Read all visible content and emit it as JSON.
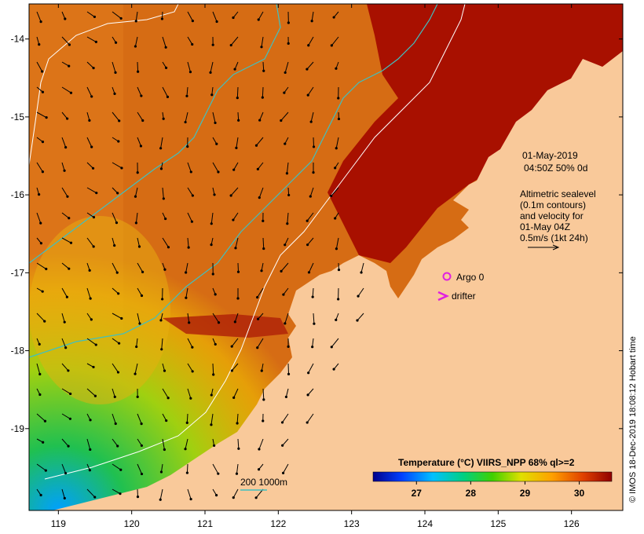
{
  "map": {
    "x_ticks": [
      "119",
      "120",
      "121",
      "122",
      "123",
      "124",
      "125",
      "126"
    ],
    "y_ticks": [
      "-14",
      "-15",
      "-16",
      "-17",
      "-18",
      "-19"
    ],
    "lon_range": [
      118.6,
      126.7
    ],
    "lat_range": [
      -20.05,
      -13.55
    ]
  },
  "info": {
    "date": "01-May-2019",
    "time": "04:50Z  50% 0d",
    "alt_1": "Altimetric sealevel",
    "alt_2": "(0.1m contours)",
    "alt_3": "and velocity for",
    "alt_4": "01-May 04Z",
    "scale": "0.5m/s (1kt 24h)"
  },
  "legend": {
    "argo": "Argo 0",
    "drifter": "drifter",
    "depth": "200  1000m"
  },
  "colorbar": {
    "title": "Temperature (°C) VIIRS_NPP 68% ql>=2",
    "ticks": [
      "27",
      "28",
      "29",
      "30"
    ]
  },
  "credit": "© IMOS 18-Dec-2019 18:08:12 Hobart time",
  "colors": {
    "land": "#f9c99a",
    "sea_hot": "#a01000",
    "sea_warm": "#d86810",
    "sea_cool": "#2ea830",
    "argo": "#e020e0",
    "bathymetry": "#40c0c0"
  }
}
